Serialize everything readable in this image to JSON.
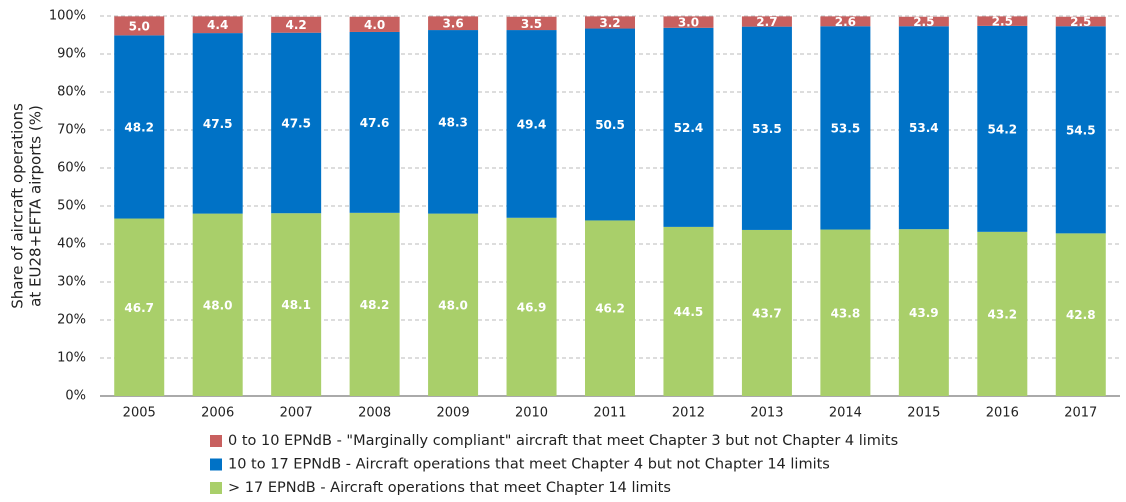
{
  "chart_data": {
    "type": "stacked_bar",
    "y_label": [
      "Share of aircraft operations",
      "at EU28+EFTA airports (%)"
    ],
    "categories": [
      "2005",
      "2006",
      "2007",
      "2008",
      "2009",
      "2010",
      "2011",
      "2012",
      "2013",
      "2014",
      "2015",
      "2016",
      "2017"
    ],
    "series": [
      {
        "name": "> 17 EPNdB - Aircraft operations that meet Chapter 14 limits",
        "color": "#a9cf6a",
        "values": [
          46.7,
          48.0,
          48.1,
          48.2,
          48.0,
          46.9,
          46.2,
          44.5,
          43.7,
          43.8,
          43.9,
          43.2,
          42.8
        ],
        "value_labels": [
          "46.7",
          "48.0",
          "48.1",
          "48.2",
          "48.0",
          "46.9",
          "46.2",
          "44.5",
          "43.7",
          "43.8",
          "43.9",
          "43.2",
          "42.8"
        ]
      },
      {
        "name": "10 to 17 EPNdB - Aircraft operations that meet Chapter 4 but not Chapter 14 limits",
        "color": "#0072c6",
        "values": [
          48.2,
          47.5,
          47.5,
          47.6,
          48.3,
          49.4,
          50.5,
          52.4,
          53.5,
          53.5,
          53.4,
          54.2,
          54.5
        ],
        "value_labels": [
          "48.2",
          "47.5",
          "47.5",
          "47.6",
          "48.3",
          "49.4",
          "50.5",
          "52.4",
          "53.5",
          "53.5",
          "53.4",
          "54.2",
          "54.5"
        ]
      },
      {
        "name": "0 to 10 EPNdB - \"Marginally compliant\" aircraft that meet Chapter 3 but not Chapter 4 limits",
        "color": "#c8605f",
        "values": [
          5.0,
          4.4,
          4.2,
          4.0,
          3.6,
          3.5,
          3.2,
          3.0,
          2.7,
          2.6,
          2.5,
          2.5,
          2.5
        ],
        "value_labels": [
          "5.0",
          "4.4",
          "4.2",
          "4.0",
          "3.6",
          "3.5",
          "3.2",
          "3.0",
          "2.7",
          "2.6",
          "2.5",
          "2.5",
          "2.5"
        ]
      }
    ],
    "ylim": [
      0,
      100
    ],
    "yticks": [
      {
        "value": 0,
        "label": "0%"
      },
      {
        "value": 10,
        "label": "10%"
      },
      {
        "value": 20,
        "label": "20%"
      },
      {
        "value": 30,
        "label": "30%"
      },
      {
        "value": 40,
        "label": "40%"
      },
      {
        "value": 50,
        "label": "50%"
      },
      {
        "value": 60,
        "label": "60%"
      },
      {
        "value": 70,
        "label": "70%"
      },
      {
        "value": 80,
        "label": "80%"
      },
      {
        "value": 90,
        "label": "90%"
      },
      {
        "value": 100,
        "label": "100%"
      }
    ],
    "grid": true
  }
}
